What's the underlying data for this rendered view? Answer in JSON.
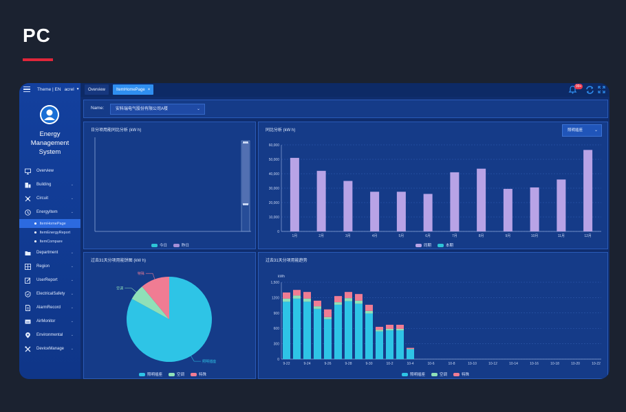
{
  "header": {
    "label": "PC",
    "accent_color": "#e0263a"
  },
  "sidebar": {
    "theme_label": "Theme | EN",
    "user": "acrel",
    "app_title": [
      "Energy",
      "Management",
      "System"
    ],
    "items": [
      {
        "label": "Overview",
        "icon": "monitor-icon",
        "chevron": false
      },
      {
        "label": "Building",
        "icon": "building-icon",
        "chevron": true
      },
      {
        "label": "Circuit",
        "icon": "circuit-icon",
        "chevron": true
      },
      {
        "label": "EnergyItem",
        "icon": "energy-icon",
        "chevron": true
      },
      {
        "label": "Department",
        "icon": "folder-icon",
        "chevron": true
      },
      {
        "label": "Region",
        "icon": "region-icon",
        "chevron": true
      },
      {
        "label": "UserReport",
        "icon": "edit-icon",
        "chevron": true
      },
      {
        "label": "ElectricalSafety",
        "icon": "shield-icon",
        "chevron": true
      },
      {
        "label": "AlarmRecord",
        "icon": "document-icon",
        "chevron": true
      },
      {
        "label": "AirMonitor",
        "icon": "air-icon",
        "chevron": true
      },
      {
        "label": "Environmental",
        "icon": "location-icon",
        "chevron": true
      },
      {
        "label": "DeviceManage",
        "icon": "tools-icon",
        "chevron": true
      }
    ],
    "subitems": [
      {
        "label": "ItemHomePage",
        "active": true
      },
      {
        "label": "ItemEnergyReport",
        "active": false
      },
      {
        "label": "ItemCompare",
        "active": false
      }
    ]
  },
  "topbar": {
    "tabs": [
      {
        "label": "Overview"
      },
      {
        "label": "ItemHomePage"
      }
    ],
    "badge": "99+",
    "close_glyph": "×"
  },
  "filter": {
    "name_label": "Name:",
    "name_value": "安科瑞电气股份有限公司A楼"
  },
  "panels": {
    "daily": {
      "title": "日分项用能同比分析 (kW h)"
    },
    "monthly": {
      "title": "同比分析 (kW h)",
      "select": "照明插座"
    },
    "pie": {
      "title": "过去31天分项用能饼图 (kW h)"
    },
    "trend": {
      "title": "过去31天分项用能趋势"
    }
  },
  "chart_data": [
    {
      "type": "bar",
      "title": "日分项用能同比分析 (kW h)",
      "categories": [
        ""
      ],
      "series": [
        {
          "name": "今日",
          "values": [
            0
          ],
          "color": "#2ec4d6"
        },
        {
          "name": "昨日",
          "values": [
            0
          ],
          "color": "#a58fd6"
        }
      ],
      "note_visible": "empty range slider shown"
    },
    {
      "type": "bar",
      "title": "同比分析 (kW h)",
      "ylim": [
        0,
        60000
      ],
      "yticks": [
        "0",
        "10,000",
        "20,000",
        "30,000",
        "40,000",
        "50,000",
        "60,000"
      ],
      "categories": [
        "1月",
        "2月",
        "3月",
        "4月",
        "5月",
        "6月",
        "7月",
        "8月",
        "9月",
        "10月",
        "11月",
        "12月"
      ],
      "series": [
        {
          "name": "同期",
          "color": "#b8a3e6",
          "values": [
            51000,
            42000,
            35000,
            27500,
            27500,
            26000,
            41000,
            43500,
            29500,
            30500,
            36000,
            56500
          ]
        },
        {
          "name": "本期",
          "color": "#2ec4d6",
          "values": [
            0,
            0,
            0,
            0,
            0,
            0,
            0,
            0,
            0,
            0,
            0,
            0
          ]
        }
      ]
    },
    {
      "type": "pie",
      "title": "过去31天分项用能饼图 (kW h)",
      "slices": [
        {
          "name": "照明插座",
          "value": 83,
          "color": "#2ec4e6"
        },
        {
          "name": "空调",
          "value": 6,
          "color": "#8fe0b8"
        },
        {
          "name": "特殊",
          "value": 11,
          "color": "#f07c93"
        }
      ],
      "labels_shown": [
        "特殊",
        "空调",
        "照明插座"
      ]
    },
    {
      "type": "bar",
      "title": "过去31天分项用能趋势",
      "ylabel": "kWh",
      "ylim": [
        0,
        1500
      ],
      "yticks": [
        "0",
        "300",
        "600",
        "900",
        "1200",
        "1,500"
      ],
      "x_tick_labels": [
        "9-22",
        "9-24",
        "9-26",
        "9-28",
        "9-30",
        "10-2",
        "10-4",
        "10-6",
        "10-8",
        "10-10",
        "10-12",
        "10-14",
        "10-16",
        "10-18",
        "10-20",
        "10-22"
      ],
      "categories": [
        "9-22",
        "9-23",
        "9-24",
        "9-25",
        "9-26",
        "9-27",
        "9-28",
        "9-29",
        "9-30",
        "10-1",
        "10-2",
        "10-3",
        "10-4",
        "10-5",
        "10-6",
        "10-7",
        "10-8",
        "10-9",
        "10-10",
        "10-11",
        "10-12",
        "10-13",
        "10-14",
        "10-15",
        "10-16",
        "10-17",
        "10-18",
        "10-19",
        "10-20",
        "10-21",
        "10-22"
      ],
      "series": [
        {
          "name": "照明插座",
          "color": "#2ec4e6",
          "values": [
            1120,
            1180,
            1120,
            980,
            780,
            1060,
            1130,
            1080,
            890,
            540,
            560,
            560,
            190,
            0,
            0,
            0,
            0,
            0,
            0,
            0,
            0,
            0,
            0,
            0,
            0,
            0,
            0,
            0,
            0,
            0,
            0
          ]
        },
        {
          "name": "空调",
          "color": "#8fe0b8",
          "values": [
            60,
            60,
            60,
            50,
            40,
            50,
            60,
            60,
            50,
            30,
            30,
            30,
            10,
            0,
            0,
            0,
            0,
            0,
            0,
            0,
            0,
            0,
            0,
            0,
            0,
            0,
            0,
            0,
            0,
            0,
            0
          ]
        },
        {
          "name": "特殊",
          "color": "#f07c93",
          "values": [
            120,
            110,
            130,
            110,
            150,
            120,
            120,
            130,
            120,
            60,
            80,
            80,
            20,
            0,
            0,
            0,
            0,
            0,
            0,
            0,
            0,
            0,
            0,
            0,
            0,
            0,
            0,
            0,
            0,
            0,
            0
          ]
        }
      ]
    }
  ]
}
